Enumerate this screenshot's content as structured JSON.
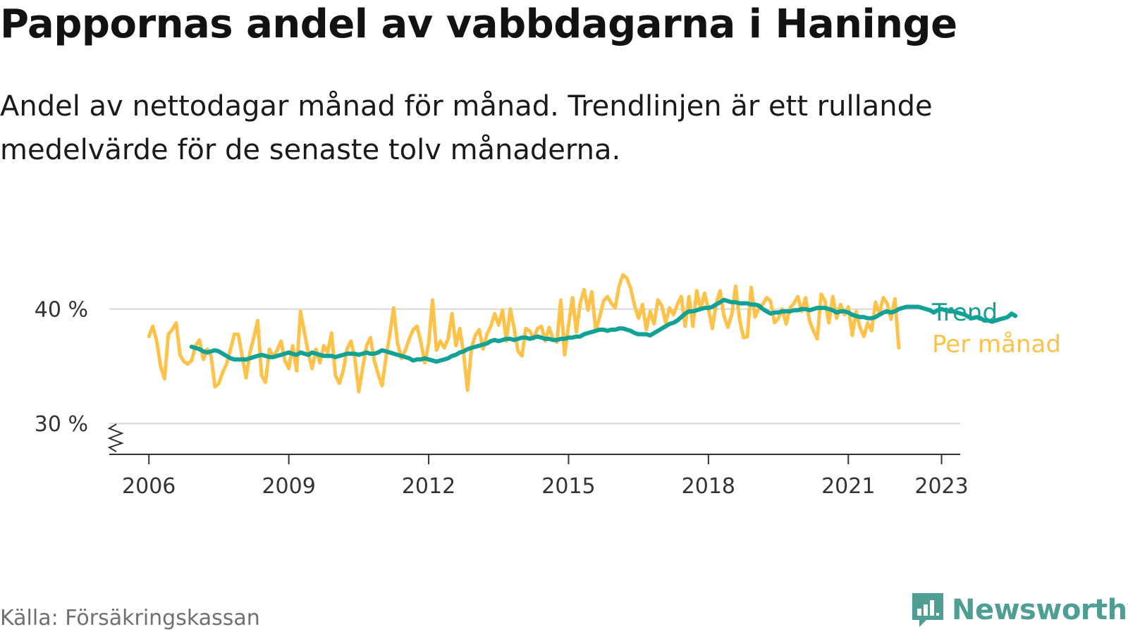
{
  "title": "Pappornas andel av vabbdagarna i Haninge",
  "subtitle": "Andel av nettodagar månad för månad. Trendlinjen är ett rullande medelvärde för de senaste tolv månaderna.",
  "source": "Källa: Försäkringskassan",
  "brand": {
    "name": "Newsworthy",
    "icon": "newsworthy-logo-icon",
    "color": "#4f9e94"
  },
  "colors": {
    "trend": "#12a295",
    "monthly": "#fcc24a",
    "grid": "#d9d9d9",
    "axis": "#333333"
  },
  "chart_data": {
    "type": "line",
    "y_ticks": [
      "30 %",
      "40 %"
    ],
    "y_tick_values": [
      30,
      40
    ],
    "y_axis_broken": true,
    "x_ticks": [
      "2006",
      "2009",
      "2012",
      "2015",
      "2018",
      "2021",
      "2023"
    ],
    "x_tick_values": [
      2006,
      2009,
      2012,
      2015,
      2018,
      2021,
      2023
    ],
    "xlim": [
      2005.15,
      2023.4
    ],
    "ylim": [
      27.3,
      43
    ],
    "grid": true,
    "legend_placement": "right, at line ends",
    "series": [
      {
        "name": "Per månad",
        "color": "#fcc24a",
        "x_start": 2006.0,
        "step": 0.0833333,
        "values": [
          37.6,
          38.5,
          37.2,
          35.0,
          33.9,
          37.8,
          38.2,
          38.8,
          36.0,
          35.4,
          35.2,
          35.5,
          36.8,
          37.3,
          35.6,
          36.5,
          35.9,
          33.2,
          33.5,
          34.5,
          35.2,
          36.5,
          37.8,
          37.8,
          35.9,
          34.0,
          36.2,
          37.5,
          39.0,
          34.2,
          33.6,
          36.5,
          35.8,
          36.4,
          37.2,
          35.5,
          34.8,
          36.8,
          34.6,
          39.8,
          38.0,
          36.2,
          34.8,
          36.5,
          35.3,
          36.8,
          36.2,
          37.9,
          34.2,
          33.5,
          34.6,
          36.5,
          37.2,
          35.7,
          32.8,
          34.8,
          36.8,
          37.5,
          35.5,
          34.3,
          33.3,
          35.7,
          37.8,
          40.1,
          37.0,
          35.7,
          36.4,
          37.4,
          38.2,
          38.5,
          37.1,
          35.3,
          37.0,
          40.8,
          36.4,
          37.2,
          36.6,
          37.4,
          39.6,
          36.8,
          38.3,
          36.1,
          32.9,
          36.6,
          37.7,
          38.2,
          36.5,
          37.8,
          38.5,
          39.6,
          38.6,
          39.9,
          37.2,
          40.0,
          38.3,
          36.3,
          35.9,
          38.3,
          38.1,
          37.4,
          38.3,
          38.5,
          37.2,
          38.4,
          37.4,
          37.1,
          40.8,
          36.0,
          38.6,
          41.0,
          38.0,
          40.5,
          41.7,
          39.9,
          41.5,
          38.1,
          39.3,
          40.7,
          41.1,
          40.5,
          40.1,
          42.0,
          43.0,
          42.7,
          41.8,
          40.3,
          39.2,
          40.4,
          38.2,
          39.8,
          38.7,
          40.8,
          40.3,
          38.8,
          40.1,
          39.5,
          40.4,
          41.1,
          38.5,
          41.1,
          38.5,
          41.6,
          40.0,
          41.4,
          40.0,
          38.3,
          40.5,
          41.6,
          39.4,
          38.4,
          39.5,
          42.0,
          39.1,
          37.5,
          37.6,
          41.9,
          39.3,
          40.1,
          40.4,
          41.0,
          40.7,
          38.8,
          39.2,
          40.0,
          38.7,
          40.1,
          40.5,
          41.1,
          39.8,
          41.0,
          39.0,
          38.1,
          37.4,
          41.3,
          40.7,
          38.8,
          41.1,
          39.2,
          40.4,
          39.5,
          40.2,
          37.7,
          39.8,
          38.4,
          37.6,
          38.8,
          38.1,
          40.6,
          39.6,
          41.0,
          40.5,
          39.1,
          40.9,
          36.6
        ]
      },
      {
        "name": "Trend",
        "color": "#12a295",
        "x_start": 2006.9167,
        "step": 0.0833333,
        "values": [
          36.7,
          36.6,
          36.5,
          36.3,
          36.2,
          36.3,
          36.4,
          36.3,
          36.1,
          35.9,
          35.7,
          35.6,
          35.6,
          35.6,
          35.6,
          35.7,
          35.8,
          35.9,
          36.0,
          35.9,
          35.8,
          35.8,
          35.9,
          36.0,
          36.1,
          36.2,
          36.1,
          36.0,
          36.2,
          36.1,
          36.0,
          36.2,
          36.1,
          36.0,
          35.9,
          35.9,
          35.9,
          35.8,
          35.9,
          36.0,
          36.1,
          36.1,
          36.1,
          36.0,
          36.1,
          36.2,
          36.1,
          36.1,
          36.2,
          36.4,
          36.3,
          36.2,
          36.1,
          36.0,
          35.9,
          35.8,
          35.7,
          35.5,
          35.6,
          35.6,
          35.7,
          35.6,
          35.5,
          35.4,
          35.5,
          35.6,
          35.7,
          35.9,
          36.0,
          36.2,
          36.3,
          36.5,
          36.6,
          36.7,
          36.8,
          36.9,
          37.0,
          37.2,
          37.3,
          37.2,
          37.3,
          37.4,
          37.4,
          37.3,
          37.4,
          37.5,
          37.5,
          37.4,
          37.5,
          37.6,
          37.5,
          37.4,
          37.4,
          37.3,
          37.3,
          37.4,
          37.4,
          37.5,
          37.5,
          37.6,
          37.6,
          37.8,
          37.9,
          38.0,
          38.1,
          38.2,
          38.2,
          38.1,
          38.2,
          38.2,
          38.3,
          38.3,
          38.2,
          38.1,
          37.9,
          37.8,
          37.8,
          37.8,
          37.7,
          37.9,
          38.1,
          38.3,
          38.5,
          38.7,
          38.8,
          39.0,
          39.3,
          39.6,
          39.8,
          39.8,
          39.9,
          40.0,
          40.1,
          40.1,
          40.2,
          40.4,
          40.6,
          40.8,
          40.7,
          40.6,
          40.6,
          40.5,
          40.5,
          40.5,
          40.4,
          40.4,
          40.3,
          40.0,
          39.8,
          39.6,
          39.7,
          39.7,
          39.8,
          39.8,
          39.8,
          39.9,
          39.9,
          40.0,
          40.0,
          39.9,
          40.0,
          40.1,
          40.1,
          40.1,
          40.0,
          39.9,
          39.7,
          39.8,
          39.8,
          39.7,
          39.5,
          39.4,
          39.3,
          39.3,
          39.2,
          39.2,
          39.3,
          39.5,
          39.7,
          39.8,
          39.7,
          39.8,
          40.0,
          40.1,
          40.2,
          40.2,
          40.2,
          40.2,
          40.1,
          40.0,
          39.9,
          39.7,
          39.9,
          40.0,
          39.9,
          39.8,
          39.8,
          39.7,
          39.6,
          39.5,
          39.3,
          39.2,
          39.3,
          39.2,
          39.0,
          39.0,
          38.9,
          39.0,
          39.1,
          39.2,
          39.3,
          39.6,
          39.4
        ]
      }
    ]
  }
}
